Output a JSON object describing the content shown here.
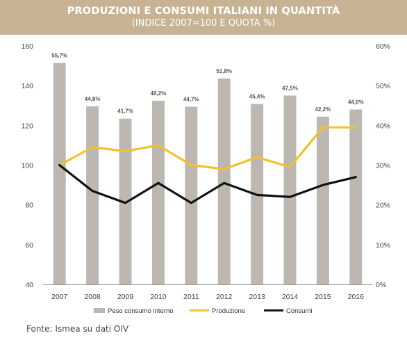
{
  "header": {
    "title": "PRODUZIONI E CONSUMI ITALIANI IN QUANTITÀ",
    "subtitle": "(INDICE 2007=100 E QUOTA %)"
  },
  "source": "Fonte: Ismea su dati OIV",
  "colors": {
    "header_bg": "#c7b393",
    "bar": "#bcb8b1",
    "produzione": "#f2c12e",
    "consumi": "#111111"
  },
  "chart_data": {
    "type": "bar",
    "categories": [
      "2007",
      "2008",
      "2009",
      "2010",
      "2011",
      "2012",
      "2013",
      "2014",
      "2015",
      "2016"
    ],
    "left_axis": {
      "ylim": [
        40,
        160
      ],
      "ticks": [
        "40",
        "60",
        "80",
        "100",
        "120",
        "140",
        "160"
      ]
    },
    "right_axis": {
      "ylim": [
        0,
        60
      ],
      "ticks": [
        "0%",
        "10%",
        "20%",
        "30%",
        "40%",
        "50%",
        "60%"
      ]
    },
    "bar_labels": [
      "55,7%",
      "44,8%",
      "41,7%",
      "46,2%",
      "44,7%",
      "51,8%",
      "45,4%",
      "47,5%",
      "42,2%",
      "44,0%"
    ],
    "series": [
      {
        "name": "Peso consumo interno",
        "type": "bar",
        "axis": "right",
        "values": [
          55.7,
          44.8,
          41.7,
          46.2,
          44.7,
          51.8,
          45.4,
          47.5,
          42.2,
          44.0
        ]
      },
      {
        "name": "Produzione",
        "type": "line",
        "axis": "left",
        "values": [
          100,
          109,
          107,
          110,
          100,
          98,
          104,
          99,
          119,
          119
        ]
      },
      {
        "name": "Consumi",
        "type": "line",
        "axis": "left",
        "values": [
          100,
          87,
          81,
          91,
          81,
          91,
          85,
          84,
          90,
          94
        ]
      }
    ],
    "legend_position": "bottom",
    "grid": false
  }
}
